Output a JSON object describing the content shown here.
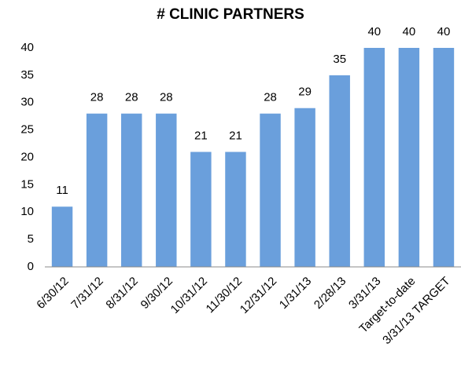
{
  "chart_data": {
    "type": "bar",
    "title": "# CLINIC PARTNERS",
    "categories": [
      "6/30/12",
      "7/31/12",
      "8/31/12",
      "9/30/12",
      "10/31/12",
      "11/30/12",
      "12/31/12",
      "1/31/13",
      "2/28/13",
      "3/31/13",
      "Target-to-date",
      "3/31/13 TARGET"
    ],
    "values": [
      11,
      28,
      28,
      28,
      21,
      21,
      28,
      29,
      35,
      40,
      40,
      40
    ],
    "color": "#6a9fdc",
    "ylim": [
      0,
      40
    ],
    "yticks": [
      0,
      5,
      10,
      15,
      20,
      25,
      30,
      35,
      40
    ],
    "grid": false
  }
}
